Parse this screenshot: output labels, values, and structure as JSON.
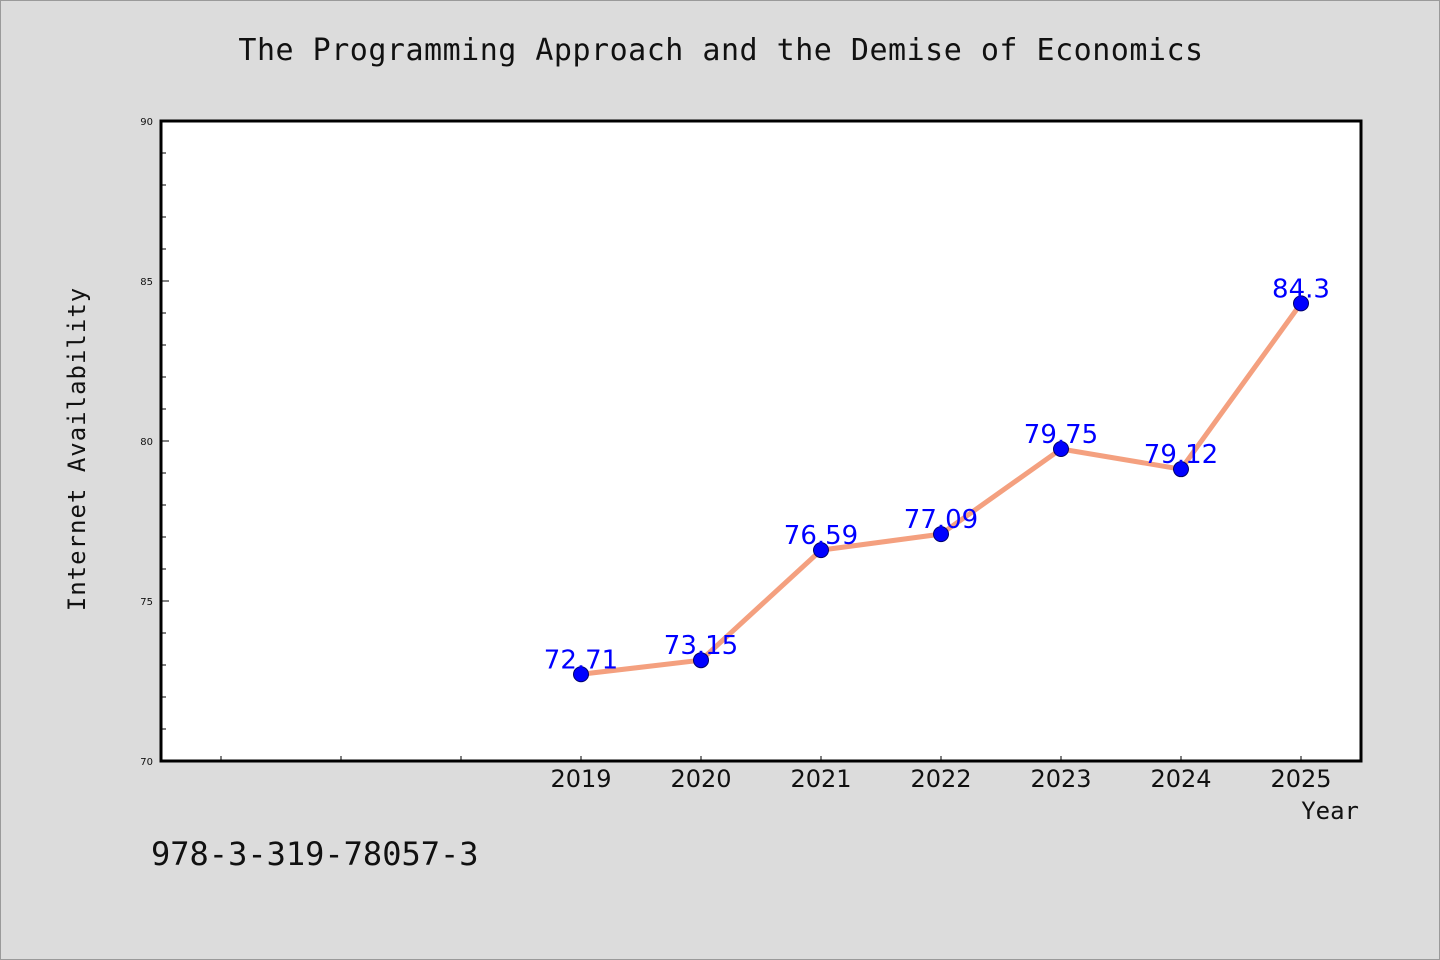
{
  "chart_data": {
    "type": "line",
    "title": "The Programming Approach and the Demise of Economics",
    "xlabel": "Year",
    "ylabel": "Internet Availability",
    "x": [
      "2019",
      "2020",
      "2021",
      "2022",
      "2023",
      "2024",
      "2025"
    ],
    "series": [
      {
        "values": [
          72.71,
          73.15,
          76.59,
          77.09,
          79.75,
          79.12,
          84.3
        ],
        "data_labels": [
          "72.71",
          "73.15",
          "76.59",
          "77.09",
          "79.75",
          "79.12",
          "84.3"
        ],
        "line_color": "#f4a07f",
        "marker_color": "#0000ff",
        "label_color": "#0000ff"
      }
    ],
    "ylim": [
      70,
      90
    ],
    "yticks": [
      "70",
      "75",
      "80",
      "85",
      "90"
    ],
    "xlim_years": [
      2015.5,
      2025.5
    ],
    "grid": false,
    "legend": "none"
  },
  "footer_text": "978-3-319-78057-3",
  "colors": {
    "background": "#dcdcdc",
    "plot_background": "#ffffff",
    "axis": "#000000"
  }
}
